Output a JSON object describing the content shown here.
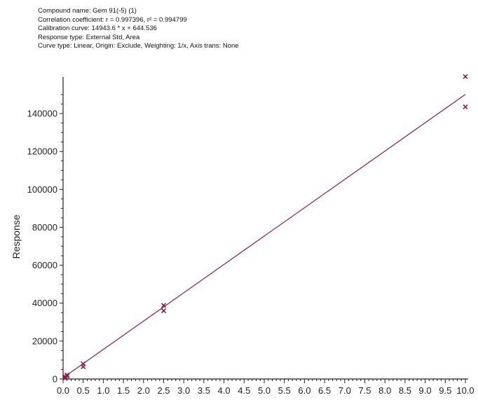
{
  "header": {
    "compound_line": "Compound name: Gem 91(-5) (1)",
    "correlation_line": "Correlation coefficient: r = 0.997396, r² = 0.994799",
    "calibration_line": "Calibration curve: 14943.6 * x + 644.536",
    "response_line": "Response type: External Std, Area",
    "curve_line": "Curve type: Linear, Origin: Exclude, Weighting: 1/x, Axis trans: None"
  },
  "colors": {
    "marker": "#8b1c4a",
    "line": "#8b1c4a",
    "axis": "#222222"
  },
  "chart_data": {
    "type": "scatter",
    "title": "",
    "xlabel": "",
    "ylabel": "Response",
    "xlim": [
      0,
      10
    ],
    "ylim": [
      0,
      150000
    ],
    "x_ticks": [
      0.0,
      0.5,
      1.0,
      1.5,
      2.0,
      2.5,
      3.0,
      3.5,
      4.0,
      4.5,
      5.0,
      5.5,
      6.0,
      6.5,
      7.0,
      7.5,
      8.0,
      8.5,
      9.0,
      9.5,
      10.0
    ],
    "x_tick_labels": [
      "0.0",
      "0.5",
      "1.0",
      "1.5",
      "2.0",
      "2.5",
      "3.0",
      "3.5",
      "4.0",
      "4.5",
      "5.0",
      "5.5",
      "6.0",
      "6.5",
      "7.0",
      "7.5",
      "8.0",
      "8.5",
      "9.0",
      "9.5",
      "10.0"
    ],
    "y_ticks": [
      0,
      20000,
      40000,
      60000,
      80000,
      100000,
      120000,
      140000
    ],
    "y_tick_labels": [
      "0",
      "20000",
      "40000",
      "60000",
      "80000",
      "100000",
      "120000",
      "140000"
    ],
    "grid": false,
    "marker": "x",
    "points": [
      {
        "x": 0.05,
        "y": 500
      },
      {
        "x": 0.05,
        "y": 1200
      },
      {
        "x": 0.1,
        "y": 1500
      },
      {
        "x": 0.1,
        "y": 2100
      },
      {
        "x": 0.5,
        "y": 6500
      },
      {
        "x": 0.5,
        "y": 8000
      },
      {
        "x": 2.5,
        "y": 36000
      },
      {
        "x": 2.5,
        "y": 38800
      },
      {
        "x": 10.0,
        "y": 143500
      },
      {
        "x": 10.0,
        "y": 159500
      }
    ],
    "fit_line": {
      "slope": 14943.6,
      "intercept": 644.536,
      "x_range": [
        0,
        10
      ]
    }
  }
}
